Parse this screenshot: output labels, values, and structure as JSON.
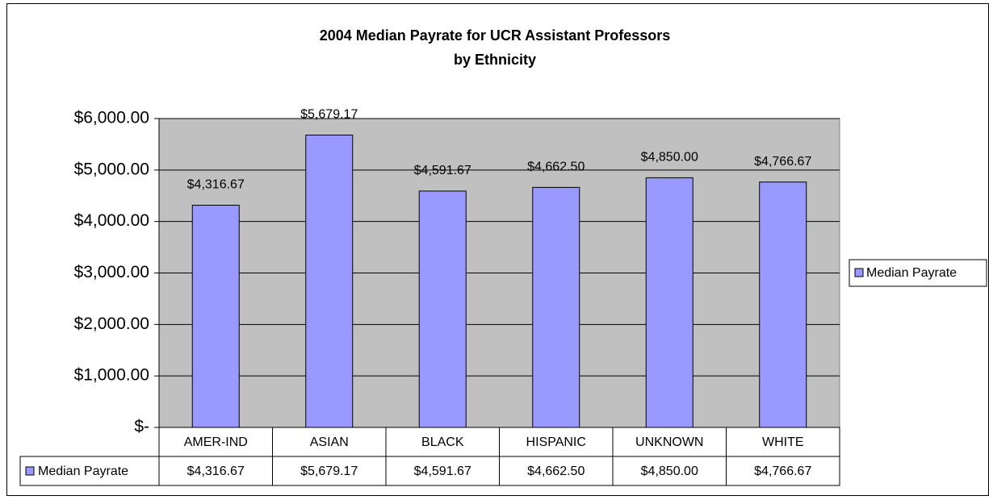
{
  "chart_data": {
    "type": "bar",
    "title": [
      "2004 Median Payrate for UCR Assistant Professors",
      "by Ethnicity"
    ],
    "categories": [
      "AMER-IND",
      "ASIAN",
      "BLACK",
      "HISPANIC",
      "UNKNOWN",
      "WHITE"
    ],
    "series": [
      {
        "name": "Median Payrate",
        "color": "#9999ff",
        "values": [
          4316.67,
          5679.17,
          4591.67,
          4662.5,
          4850.0,
          4766.67
        ],
        "value_labels": [
          "$4,316.67",
          "$5,679.17",
          "$4,591.67",
          "$4,662.50",
          "$4,850.00",
          "$4,766.67"
        ]
      }
    ],
    "ylim": [
      0,
      6000
    ],
    "yticks": [
      {
        "value": 0,
        "label": "$-"
      },
      {
        "value": 1000,
        "label": "$1,000.00"
      },
      {
        "value": 2000,
        "label": "$2,000.00"
      },
      {
        "value": 3000,
        "label": "$3,000.00"
      },
      {
        "value": 4000,
        "label": "$4,000.00"
      },
      {
        "value": 5000,
        "label": "$5,000.00"
      },
      {
        "value": 6000,
        "label": "$6,000.00"
      }
    ],
    "grid": true,
    "legend": "right",
    "plot_background": "#c0c0c0"
  }
}
